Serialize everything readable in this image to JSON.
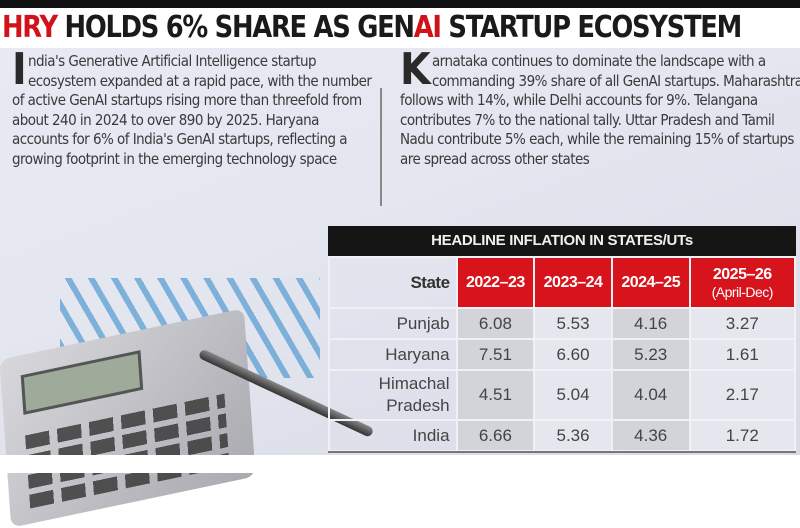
{
  "headline": {
    "highlight1": "HRY",
    "middle": " HOLDS 6% SHARE AS GEN",
    "highlight2": "AI",
    "end": " STARTUP ECOSYSTEM"
  },
  "colors": {
    "accent_red": "#d7141c",
    "header_black": "#151515"
  },
  "left_text": {
    "drop_cap": "I",
    "body": "ndia's Generative Artificial Intelligence startup ecosystem expanded at a rapid pace, with the number of active GenAI startups rising more than threefold from about 240 in 2024 to over 890 by 2025. Haryana accounts for 6% of India's GenAI startups, reflecting a growing footprint in the emerging technology space"
  },
  "right_text": {
    "drop_cap": "K",
    "body": "arnataka continues to dominate the landscape with a commanding 39% share of all GenAI startups. Maharashtra follows with 14%, while Delhi accounts for 9%. Telangana contributes 7% to the national tally. Uttar Pradesh and Tamil Nadu contribute 5% each, while the remaining 15% of startups are spread across other states"
  },
  "table": {
    "title": "HEADLINE INFLATION IN STATES/UTs",
    "headers": [
      "State",
      "2022–23",
      "2023–24",
      "2024–25",
      "2025–26"
    ],
    "header_sub": "(April-Dec)",
    "rows": [
      [
        "Punjab",
        "6.08",
        "5.53",
        "4.16",
        "3.27"
      ],
      [
        "Haryana",
        "7.51",
        "6.60",
        "5.23",
        "1.61"
      ],
      [
        "Himachal Pradesh",
        "4.51",
        "5.04",
        "4.04",
        "2.17"
      ],
      [
        "India",
        "6.66",
        "5.36",
        "4.36",
        "1.72"
      ]
    ]
  }
}
